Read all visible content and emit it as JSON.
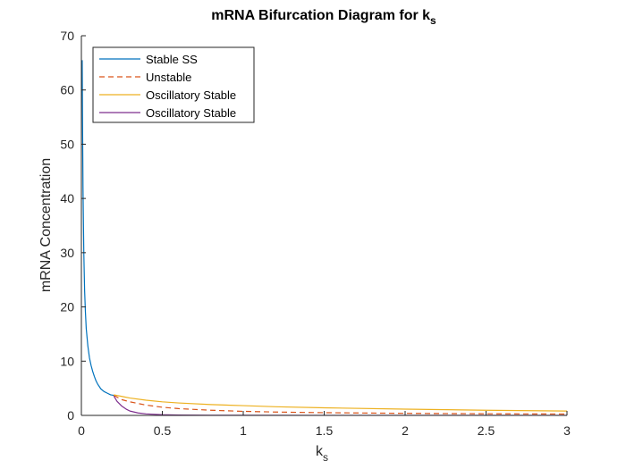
{
  "chart_data": {
    "type": "line",
    "title": "mRNA Bifurcation Diagram for k",
    "title_subscript": "s",
    "xlabel": "k",
    "xlabel_subscript": "s",
    "ylabel": "mRNA Concentration",
    "xlim": [
      0,
      3
    ],
    "ylim": [
      0,
      70
    ],
    "xticks": [
      "0",
      "0.5",
      "1",
      "1.5",
      "2",
      "2.5",
      "3"
    ],
    "xtick_values": [
      0,
      0.5,
      1,
      1.5,
      2,
      2.5,
      3
    ],
    "yticks": [
      "0",
      "10",
      "20",
      "30",
      "40",
      "50",
      "60",
      "70"
    ],
    "ytick_values": [
      0,
      10,
      20,
      30,
      40,
      50,
      60,
      70
    ],
    "grid": false,
    "legend_position": "top-left",
    "series": [
      {
        "name": "Stable SS",
        "color": "#0072BD",
        "style": "solid",
        "x": [
          0.005,
          0.007,
          0.01,
          0.015,
          0.02,
          0.025,
          0.03,
          0.04,
          0.05,
          0.06,
          0.07,
          0.08,
          0.09,
          0.1,
          0.12,
          0.14,
          0.16,
          0.18,
          0.2
        ],
        "y": [
          65.5,
          55,
          42,
          30,
          23,
          19,
          16,
          12.8,
          10.6,
          9.2,
          8.1,
          7.2,
          6.4,
          5.8,
          4.9,
          4.4,
          4.1,
          3.8,
          3.7
        ]
      },
      {
        "name": "Unstable",
        "color": "#D95319",
        "style": "dashed",
        "x": [
          0.2,
          0.25,
          0.3,
          0.4,
          0.5,
          0.6,
          0.8,
          1.0,
          1.2,
          1.5,
          2.0,
          2.5,
          3.0
        ],
        "y": [
          3.7,
          2.9,
          2.5,
          1.9,
          1.5,
          1.25,
          0.95,
          0.75,
          0.62,
          0.5,
          0.38,
          0.3,
          0.25
        ]
      },
      {
        "name": "Oscillatory Stable",
        "color": "#EDB120",
        "style": "solid",
        "x": [
          0.2,
          0.25,
          0.3,
          0.4,
          0.5,
          0.6,
          0.8,
          1.0,
          1.2,
          1.5,
          2.0,
          2.5,
          3.0
        ],
        "y": [
          3.8,
          3.5,
          3.2,
          2.8,
          2.5,
          2.3,
          2.0,
          1.8,
          1.6,
          1.4,
          1.15,
          0.95,
          0.8
        ]
      },
      {
        "name": "Oscillatory Stable",
        "color": "#7E2F8E",
        "style": "solid",
        "x": [
          0.2,
          0.22,
          0.25,
          0.28,
          0.3,
          0.35,
          0.4,
          0.5,
          0.6,
          0.8,
          1.0,
          1.5,
          2.0,
          2.5,
          3.0
        ],
        "y": [
          3.6,
          2.6,
          1.7,
          1.1,
          0.8,
          0.45,
          0.28,
          0.12,
          0.06,
          0.03,
          0.02,
          0.01,
          0.01,
          0.01,
          0.01
        ]
      }
    ]
  }
}
